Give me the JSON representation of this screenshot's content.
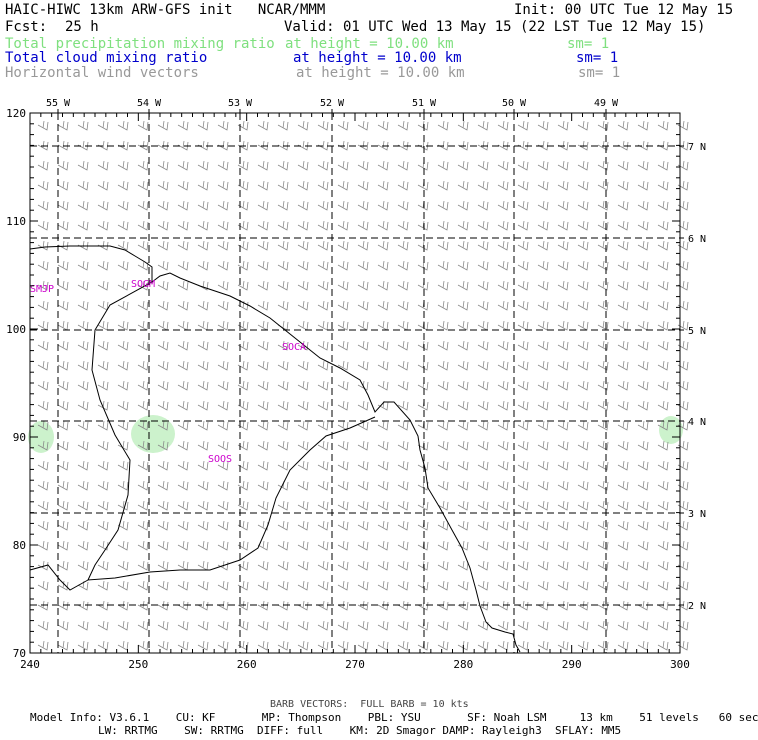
{
  "header": {
    "title": "HAIC-HIWC 13km ARW-GFS init   NCAR/MMM",
    "init": "Init: 00 UTC Tue 12 May 15",
    "fcst_label": "Fcst:",
    "fcst_value": "25 h",
    "valid": "Valid: 01 UTC Wed 13 May 15 (22 LST Tue 12 May 15)"
  },
  "fields": [
    {
      "name": "Total precipitation mixing ratio",
      "height": "at height = 10.00 km",
      "sm": "sm= 1",
      "color": "#7fe07f"
    },
    {
      "name": "Total cloud mixing ratio",
      "height": "at height = 10.00 km",
      "sm": "sm= 1",
      "color": "#0000cc"
    },
    {
      "name": "Horizontal wind vectors",
      "height": "at height = 10.00 km",
      "sm": "sm= 1",
      "color": "#999999"
    }
  ],
  "map": {
    "x_ticks": [
      "240",
      "250",
      "260",
      "270",
      "280",
      "290",
      "300"
    ],
    "y_ticks": [
      "70",
      "80",
      "90",
      "100",
      "110",
      "120"
    ],
    "lon_labels": [
      "55 W",
      "54 W",
      "53 W",
      "52 W",
      "51 W",
      "50 W",
      "49 W"
    ],
    "lat_labels": [
      "7 N",
      "6 N",
      "5 N",
      "4 N",
      "3 N",
      "2 N"
    ],
    "stations": [
      "SMJP",
      "SOGM",
      "SOCA",
      "SOOS"
    ],
    "precip_color": "#ccf2cc",
    "station_color": "#cc00cc"
  },
  "footer": {
    "barb": "BARB VECTORS:  FULL BARB = 10 kts",
    "model_line1": "Model Info: V3.6.1    CU: KF       MP: Thompson    PBL: YSU       SF: Noah LSM     13 km    51 levels   60 sec",
    "model_line2": "LW: RRTMG    SW: RRTMG  DIFF: full    KM: 2D Smagor DAMP: Rayleigh3  SFLAY: MM5"
  }
}
